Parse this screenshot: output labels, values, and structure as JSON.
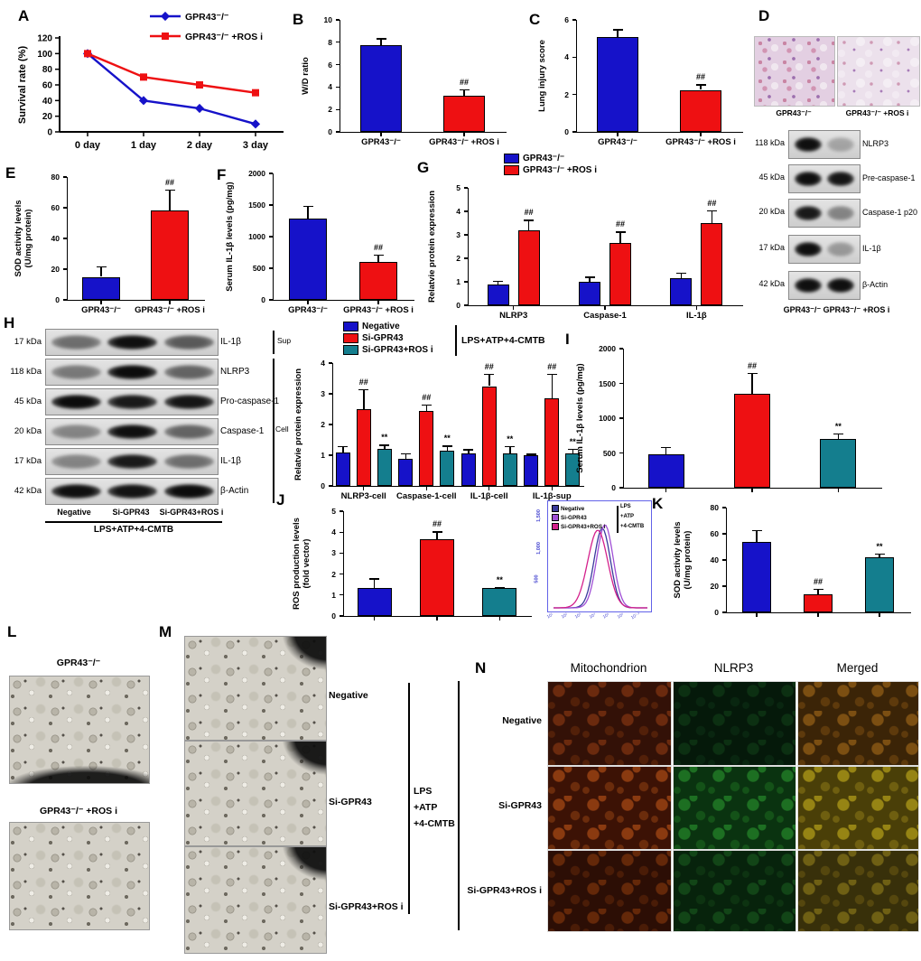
{
  "colors": {
    "blue": "#1612c9",
    "red": "#ee1012",
    "teal": "#147e8e",
    "flow_navy": "#3a3a9c",
    "flow_violet": "#a04fd6",
    "flow_magenta": "#d4218c"
  },
  "panels": {
    "a": {
      "label": "A",
      "ylabel": "Survival rate (%)",
      "ylim": 120,
      "yticks": [
        0,
        20,
        40,
        60,
        80,
        100,
        120
      ],
      "categories": [
        "0 day",
        "1 day",
        "2 day",
        "3 day"
      ],
      "series": [
        {
          "name": "GPR43⁻/⁻",
          "c": "blue",
          "marker": "diamond",
          "values": [
            100,
            40,
            30,
            10
          ]
        },
        {
          "name": "GPR43⁻/⁻ +ROS i",
          "c": "red",
          "marker": "square",
          "values": [
            100,
            70,
            60,
            50
          ]
        }
      ]
    },
    "b": {
      "label": "B",
      "ylabel": "W/D ratio",
      "ylim": 10,
      "yticks": [
        0,
        2,
        4,
        6,
        8,
        10
      ],
      "groups": [
        {
          "label": "GPR43⁻/⁻",
          "bars": [
            {
              "v": 7.75,
              "e": 0.6,
              "c": "blue"
            }
          ]
        },
        {
          "label": "GPR43⁻/⁻ +ROS i",
          "bars": [
            {
              "v": 3.2,
              "e": 0.6,
              "a": "##",
              "c": "red"
            }
          ]
        }
      ]
    },
    "c": {
      "label": "C",
      "ylabel": "Lung injury score",
      "ylim": 6,
      "yticks": [
        0,
        2,
        4,
        6
      ],
      "groups": [
        {
          "label": "GPR43⁻/⁻",
          "bars": [
            {
              "v": 5.1,
              "e": 0.4,
              "c": "blue"
            }
          ]
        },
        {
          "label": "GPR43⁻/⁻ +ROS i",
          "bars": [
            {
              "v": 2.25,
              "e": 0.3,
              "a": "##",
              "c": "red"
            }
          ]
        }
      ]
    },
    "d": {
      "label": "D",
      "histology": [
        "GPR43⁻/⁻",
        "GPR43⁻/⁻ +ROS i"
      ],
      "blots": [
        {
          "kda": "118 kDa",
          "protein": "NLRP3",
          "bands": [
            0.95,
            0.25
          ]
        },
        {
          "kda": "45 kDa",
          "protein": "Pre-caspase-1",
          "bands": [
            0.95,
            0.92
          ]
        },
        {
          "kda": "20 kDa",
          "protein": "Caspase-1 p20",
          "bands": [
            0.9,
            0.4
          ]
        },
        {
          "kda": "17 kDa",
          "protein": "IL-1β",
          "bands": [
            0.95,
            0.3
          ]
        },
        {
          "kda": "42 kDa",
          "protein": "β-Actin",
          "bands": [
            0.95,
            0.95
          ]
        }
      ],
      "footer": "GPR43⁻/⁻  GPR43⁻/⁻ +ROS i"
    },
    "e": {
      "label": "E",
      "ylabel": "SOD activity levels\n(U/mg protein)",
      "ylim": 80,
      "yticks": [
        0,
        20,
        40,
        60,
        80
      ],
      "groups": [
        {
          "label": "GPR43⁻/⁻",
          "bars": [
            {
              "v": 15,
              "e": 7,
              "c": "blue"
            }
          ]
        },
        {
          "label": "GPR43⁻/⁻ +ROS i",
          "bars": [
            {
              "v": 58,
              "e": 14,
              "a": "##",
              "c": "red"
            }
          ]
        }
      ]
    },
    "f": {
      "label": "F",
      "ylabel": "Serum IL-1β levels (pg/mg)",
      "ylim": 2000,
      "yticks": [
        0,
        500,
        1000,
        1500,
        2000
      ],
      "groups": [
        {
          "label": "GPR43⁻/⁻",
          "bars": [
            {
              "v": 1290,
              "e": 200,
              "c": "blue"
            }
          ]
        },
        {
          "label": "GPR43⁻/⁻ +ROS i",
          "bars": [
            {
              "v": 600,
              "e": 120,
              "a": "##",
              "c": "red"
            }
          ]
        }
      ]
    },
    "g": {
      "label": "G",
      "ylabel": "Relatvie protein expression",
      "ylim": 5,
      "yticks": [
        0,
        1,
        2,
        3,
        4,
        5
      ],
      "legend": [
        {
          "label": "GPR43⁻/⁻",
          "c": "blue"
        },
        {
          "label": "GPR43⁻/⁻ +ROS i",
          "c": "red"
        }
      ],
      "groups": [
        {
          "label": "NLRP3",
          "bars": [
            {
              "v": 0.9,
              "e": 0.15,
              "c": "blue"
            },
            {
              "v": 3.2,
              "e": 0.45,
              "a": "##",
              "c": "red"
            }
          ]
        },
        {
          "label": "Caspase-1",
          "bars": [
            {
              "v": 1.0,
              "e": 0.22,
              "c": "blue"
            },
            {
              "v": 2.65,
              "e": 0.5,
              "a": "##",
              "c": "red"
            }
          ]
        },
        {
          "label": "IL-1β",
          "bars": [
            {
              "v": 1.15,
              "e": 0.25,
              "c": "blue"
            },
            {
              "v": 3.5,
              "e": 0.55,
              "a": "##",
              "c": "red"
            }
          ]
        }
      ]
    },
    "h": {
      "label": "H",
      "rows": [
        {
          "kda": "17 kDa",
          "protein": "IL-1β",
          "bands": [
            0.5,
            0.95,
            0.6
          ]
        },
        {
          "kda": "118 kDa",
          "protein": "NLRP3",
          "bands": [
            0.45,
            0.97,
            0.55
          ]
        },
        {
          "kda": "45 kDa",
          "protein": "Pro-caspase-1",
          "bands": [
            0.97,
            0.9,
            0.92
          ]
        },
        {
          "kda": "20 kDa",
          "protein": "Caspase-1",
          "bands": [
            0.4,
            0.95,
            0.55
          ]
        },
        {
          "kda": "17 kDa",
          "protein": "IL-1β",
          "bands": [
            0.4,
            0.9,
            0.5
          ]
        },
        {
          "kda": "42 kDa",
          "protein": "β-Actin",
          "bands": [
            0.95,
            0.93,
            0.97
          ]
        }
      ],
      "sup_label": "Sup",
      "cell_label": "Cell",
      "lanes": [
        "Negative",
        "Si-GPR43",
        "Si-GPR43+ROS i"
      ],
      "treatment": "LPS+ATP+4-CMTB"
    },
    "hc": {
      "ylabel": "Relatvie protein expression",
      "ylim": 4,
      "yticks": [
        0,
        1,
        2,
        3,
        4
      ],
      "legend": [
        {
          "label": "Negative",
          "c": "blue"
        },
        {
          "label": "Si-GPR43",
          "c": "red"
        },
        {
          "label": "Si-GPR43+ROS i",
          "c": "teal"
        }
      ],
      "bracket": "LPS+ATP+4-CMTB",
      "groups": [
        {
          "label": "NLRP3-cell",
          "bars": [
            {
              "v": 1.1,
              "e": 0.2,
              "c": "blue"
            },
            {
              "v": 2.5,
              "e": 0.65,
              "a": "##",
              "c": "red"
            },
            {
              "v": 1.2,
              "e": 0.15,
              "a": "**",
              "c": "teal"
            }
          ]
        },
        {
          "label": "Caspase-1-cell",
          "bars": [
            {
              "v": 0.87,
              "e": 0.2,
              "c": "blue"
            },
            {
              "v": 2.45,
              "e": 0.2,
              "a": "##",
              "c": "red"
            },
            {
              "v": 1.15,
              "e": 0.17,
              "a": "**",
              "c": "teal"
            }
          ]
        },
        {
          "label": "IL-1β-cell",
          "bars": [
            {
              "v": 1.05,
              "e": 0.15,
              "c": "blue"
            },
            {
              "v": 3.25,
              "e": 0.4,
              "a": "##",
              "c": "red"
            },
            {
              "v": 1.05,
              "e": 0.25,
              "a": "**",
              "c": "teal"
            }
          ]
        },
        {
          "label": "IL-1β-sup",
          "bars": [
            {
              "v": 1.0,
              "e": 0.05,
              "c": "blue"
            },
            {
              "v": 2.85,
              "e": 0.8,
              "a": "##",
              "c": "red"
            },
            {
              "v": 1.07,
              "e": 0.15,
              "a": "**",
              "c": "teal"
            }
          ]
        }
      ]
    },
    "i": {
      "label": "I",
      "ylabel": "Serum IL-1β levels (pg/mg)",
      "ylim": 2000,
      "yticks": [
        0,
        500,
        1000,
        1500,
        2000
      ],
      "groups": [
        {
          "label": "",
          "bars": [
            {
              "v": 480,
              "e": 110,
              "c": "blue"
            }
          ]
        },
        {
          "label": "",
          "bars": [
            {
              "v": 1350,
              "e": 300,
              "a": "##",
              "c": "red"
            }
          ]
        },
        {
          "label": "",
          "bars": [
            {
              "v": 700,
              "e": 80,
              "a": "**",
              "c": "teal"
            }
          ]
        }
      ]
    },
    "j": {
      "label": "J",
      "ylabel": "ROS production levels\n(fold vector)",
      "ylim": 5,
      "yticks": [
        0,
        1,
        2,
        3,
        4,
        5
      ],
      "groups": [
        {
          "label": "",
          "bars": [
            {
              "v": 1.35,
              "e": 0.45,
              "c": "blue"
            }
          ]
        },
        {
          "label": "",
          "bars": [
            {
              "v": 3.65,
              "e": 0.4,
              "a": "##",
              "c": "red"
            }
          ]
        },
        {
          "label": "",
          "bars": [
            {
              "v": 1.35,
              "e": 0.05,
              "a": "**",
              "c": "teal"
            }
          ]
        }
      ],
      "flow": {
        "yticks": [
          "1,500",
          "1,000",
          "500"
        ],
        "xticks": [
          "10¹",
          "10²",
          "10³",
          "10⁴",
          "10⁵",
          "10⁶",
          "10⁷·²"
        ],
        "legend": [
          {
            "label": "Negative",
            "c": "flow_navy"
          },
          {
            "label": "Si-GPR43",
            "c": "flow_violet"
          },
          {
            "label": "Si-GPR43+ROS i",
            "c": "flow_magenta"
          }
        ],
        "treatment": [
          "LPS",
          "+ATP",
          "+4-CMTB"
        ]
      }
    },
    "k": {
      "label": "K",
      "ylabel": "SOD activity levels\n(U/mg protein)",
      "ylim": 80,
      "yticks": [
        0,
        20,
        40,
        60,
        80
      ],
      "groups": [
        {
          "label": "",
          "bars": [
            {
              "v": 54,
              "e": 9,
              "c": "blue"
            }
          ]
        },
        {
          "label": "",
          "bars": [
            {
              "v": 14,
              "e": 4,
              "a": "##",
              "c": "red"
            }
          ]
        },
        {
          "label": "",
          "bars": [
            {
              "v": 42,
              "e": 3,
              "a": "**",
              "c": "teal"
            }
          ]
        }
      ]
    },
    "l": {
      "label": "L",
      "captions": [
        "GPR43⁻/⁻",
        "GPR43⁻/⁻ +ROS i"
      ]
    },
    "m": {
      "label": "M",
      "rows": [
        "Negative",
        "Si-GPR43",
        "Si-GPR43+ROS i"
      ],
      "treatment": [
        "LPS",
        "+ATP",
        "+4-CMTB"
      ]
    },
    "n": {
      "label": "N",
      "columns": [
        "Mitochondrion",
        "NLRP3",
        "Merged"
      ],
      "rows": [
        "Negative",
        "Si-GPR43",
        "Si-GPR43+ROS i"
      ]
    }
  }
}
